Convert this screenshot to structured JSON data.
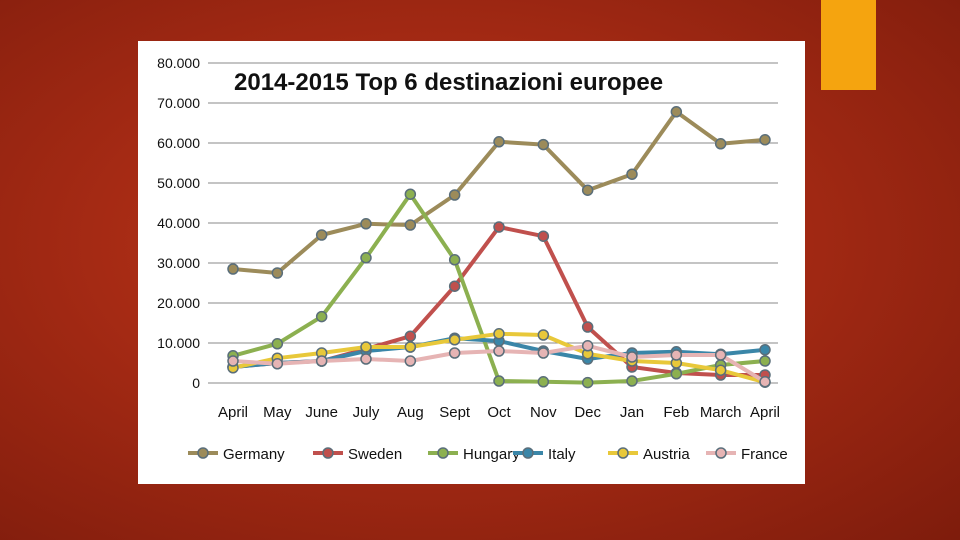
{
  "slide": {
    "background_color": "#a52a14",
    "accent_color": "#f5a40f"
  },
  "chart_data": {
    "type": "line",
    "title": "2014-2015 Top 6 destinazioni europee",
    "xlabel": "",
    "ylabel": "",
    "categories": [
      "April",
      "May",
      "June",
      "July",
      "Aug",
      "Sept",
      "Oct",
      "Nov",
      "Dec",
      "Jan",
      "Feb",
      "March",
      "April"
    ],
    "y_ticks": [
      {
        "value": 0,
        "label": "0"
      },
      {
        "value": 10000,
        "label": "10.000"
      },
      {
        "value": 20000,
        "label": "20.000"
      },
      {
        "value": 30000,
        "label": "30.000"
      },
      {
        "value": 40000,
        "label": "40.000"
      },
      {
        "value": 50000,
        "label": "50.000"
      },
      {
        "value": 60000,
        "label": "60.000"
      },
      {
        "value": 70000,
        "label": "70.000"
      },
      {
        "value": 80000,
        "label": "80.000"
      }
    ],
    "ylim": [
      0,
      80000
    ],
    "grid": "horizontal",
    "legend_position": "bottom",
    "series": [
      {
        "name": "Germany",
        "color": "#9c8b5a",
        "values": [
          28500,
          27500,
          37000,
          39800,
          39500,
          47000,
          60300,
          59600,
          48200,
          52200,
          67800,
          59800,
          60800
        ]
      },
      {
        "name": "Sweden",
        "color": "#c0504d",
        "values": [
          4000,
          5000,
          5500,
          8500,
          11700,
          24200,
          39000,
          36700,
          14000,
          4000,
          2500,
          2000,
          2000
        ]
      },
      {
        "name": "Hungary",
        "color": "#8cb050",
        "values": [
          6800,
          9800,
          16600,
          31300,
          47200,
          30800,
          500,
          300,
          100,
          500,
          2300,
          4500,
          5500
        ]
      },
      {
        "name": "Italy",
        "color": "#3a86a8",
        "values": [
          4000,
          5000,
          5500,
          8000,
          9000,
          11200,
          10500,
          8000,
          6000,
          7500,
          7800,
          7200,
          8300
        ]
      },
      {
        "name": "Austria",
        "color": "#e8c83a",
        "values": [
          3800,
          6200,
          7500,
          9000,
          9000,
          10800,
          12300,
          12000,
          7300,
          5500,
          5000,
          3200,
          200
        ]
      },
      {
        "name": "France",
        "color": "#e6b4b4",
        "values": [
          5500,
          4800,
          5500,
          6000,
          5500,
          7500,
          8000,
          7500,
          9300,
          6500,
          7000,
          7000,
          300
        ]
      }
    ]
  }
}
